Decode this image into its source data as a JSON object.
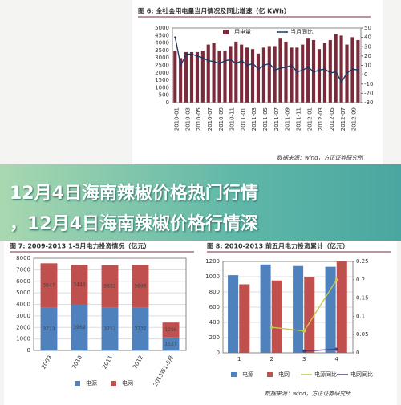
{
  "headline": [
    "12月4日海南辣椒价格热门行情",
    "，12月4日海南辣椒价格行情深"
  ],
  "chart_data": [
    {
      "type": "bar",
      "title": "图 6: 全社会用电量当月情况及同比增速（亿 KWh）",
      "legend": "top",
      "categories": [
        "2010-01",
        null,
        "2010-03",
        null,
        "2010-05",
        null,
        "2010-07",
        null,
        "2010-09",
        null,
        "2010-11",
        null,
        "2011-01",
        null,
        "2011-03",
        null,
        "2011-05",
        null,
        "2011-07",
        null,
        "2011-09",
        null,
        "2011-11",
        null,
        "2012-01",
        null,
        "2012-03",
        null,
        "2012-05",
        null,
        "2012-07",
        null,
        "2012-09",
        null
      ],
      "series": [
        {
          "name": "用电量",
          "color": "#7b2a3a",
          "values": [
            3500,
            3000,
            3400,
            3400,
            3400,
            3500,
            3900,
            4000,
            3500,
            3500,
            3800,
            4100,
            3900,
            3700,
            3600,
            3300,
            3700,
            3800,
            3800,
            4300,
            4100,
            3700,
            3700,
            3900,
            4300,
            4200,
            3600,
            4000,
            4200,
            4600,
            4500,
            3900,
            4400,
            4200
          ]
        },
        {
          "name": "当月同比",
          "color": "#1f3864",
          "type": "line",
          "axis": "y2",
          "values": [
            40,
            10,
            22,
            22,
            20,
            18,
            15,
            14,
            12,
            15,
            16,
            12,
            15,
            10,
            12,
            6,
            10,
            12,
            5,
            7,
            8,
            10,
            3,
            5,
            8,
            3,
            5,
            6,
            2,
            3,
            -8,
            2,
            6,
            5
          ]
        }
      ],
      "ylim": [
        0,
        5000
      ],
      "yticks": [
        0,
        500,
        1000,
        1500,
        2000,
        2500,
        3000,
        3500,
        4000,
        4500,
        5000
      ],
      "y2lim": [
        -30,
        50
      ],
      "y2ticks": [
        -30,
        -20,
        -10,
        0,
        10,
        20,
        30,
        40,
        50
      ],
      "source": "数据来源：wind，方正证券研究所"
    },
    {
      "type": "stacked_bar",
      "title": "图 7: 2009-2013 1-5月电力投资情况（亿元）",
      "legend": "bottom",
      "categories": [
        "2009",
        "2010",
        "2011",
        "2012",
        "2013年1-5月"
      ],
      "series": [
        {
          "name": "电源",
          "color": "#4f81bd",
          "values": [
            3713,
            3969,
            3712,
            3732,
            1127
          ]
        },
        {
          "name": "电网",
          "color": "#c0504d",
          "values": [
            3847,
            3448,
            3682,
            3693,
            1296
          ]
        }
      ],
      "ylim": [
        0,
        8000
      ],
      "yticks": [
        0,
        1000,
        2000,
        3000,
        4000,
        5000,
        6000,
        7000,
        8000
      ]
    },
    {
      "type": "bar",
      "title": "图 8: 2010-2013 前五月电力投资累计（亿元）",
      "legend": "bottom",
      "categories": [
        "1",
        "2",
        "3",
        "4"
      ],
      "series": [
        {
          "name": "电源",
          "color": "#4f81bd",
          "values": [
            1020,
            1160,
            1140,
            1130
          ]
        },
        {
          "name": "电网",
          "color": "#c0504d",
          "values": [
            900,
            950,
            1000,
            1200
          ]
        },
        {
          "name": "电源同比",
          "color": "#c8c850",
          "type": "line",
          "axis": "y2",
          "values": [
            null,
            0.07,
            0.06,
            0.2
          ]
        },
        {
          "name": "电网同比",
          "color": "#4b3f72",
          "type": "line",
          "axis": "y2",
          "values": [
            null,
            null,
            0.005,
            0.01
          ]
        }
      ],
      "ylim": [
        0,
        1200
      ],
      "yticks": [
        0,
        200,
        400,
        600,
        800,
        1000,
        1200
      ],
      "y2lim": [
        0,
        0.25
      ],
      "y2ticks": [
        0,
        0.05,
        0.1,
        0.15,
        0.2,
        0.25
      ],
      "source": "数据来源：wind，方正证券研究所"
    }
  ]
}
